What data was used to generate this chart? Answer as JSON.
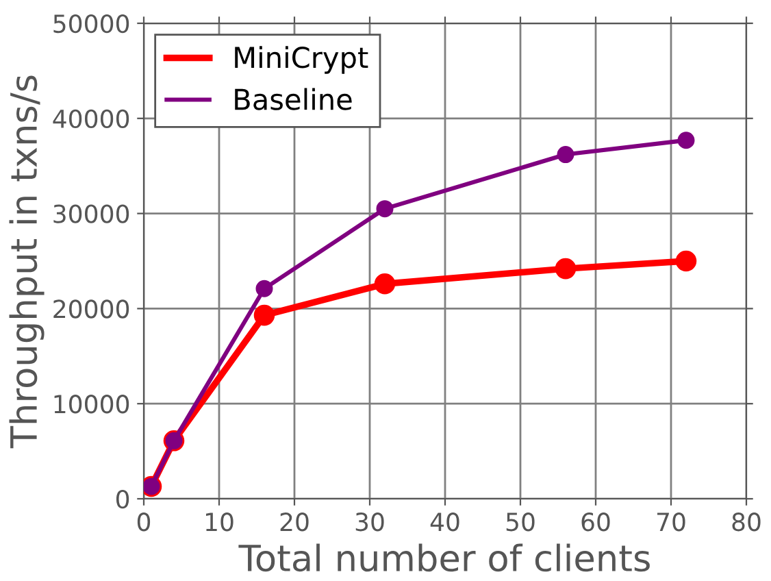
{
  "chart_data": {
    "type": "line",
    "xlabel": "Total number of clients",
    "ylabel": "Throughput in txns/s",
    "x": [
      1,
      4,
      16,
      32,
      56,
      72
    ],
    "series": [
      {
        "name": "MiniCrypt",
        "color": "#ff0000",
        "values": [
          1300,
          6100,
          19300,
          22600,
          24200,
          25000
        ]
      },
      {
        "name": "Baseline",
        "color": "#800080",
        "values": [
          1300,
          6100,
          22100,
          30500,
          36200,
          37700
        ]
      }
    ],
    "xlim": [
      0,
      80
    ],
    "xticks": [
      0,
      10,
      20,
      30,
      40,
      50,
      60,
      70,
      80
    ],
    "ylim": [
      0,
      50000
    ],
    "yticks": [
      0,
      10000,
      20000,
      30000,
      40000,
      50000
    ],
    "grid": true,
    "legend": "top left",
    "marker": "circle",
    "line_style": "solid"
  }
}
